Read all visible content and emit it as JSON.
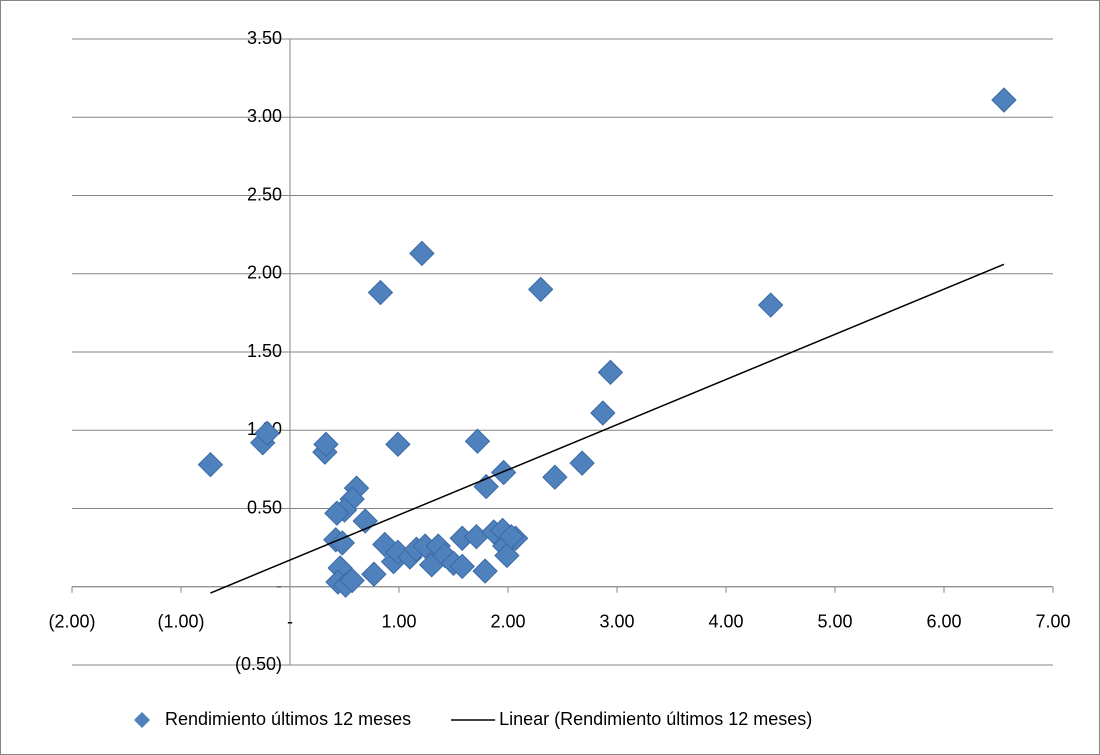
{
  "chart_data": {
    "type": "scatter",
    "xlim": [
      -2,
      7
    ],
    "xticks": [
      {
        "value": -2,
        "label": "(2.00)"
      },
      {
        "value": -1,
        "label": "(1.00)"
      },
      {
        "value": 0,
        "label": "-"
      },
      {
        "value": 1,
        "label": "1.00"
      },
      {
        "value": 2,
        "label": "2.00"
      },
      {
        "value": 3,
        "label": "3.00"
      },
      {
        "value": 4,
        "label": "4.00"
      },
      {
        "value": 5,
        "label": "5.00"
      },
      {
        "value": 6,
        "label": "6.00"
      },
      {
        "value": 7,
        "label": "7.00"
      }
    ],
    "ylim": [
      -0.5,
      3.5
    ],
    "yticks": [
      {
        "value": -0.5,
        "label": "(0.50)"
      },
      {
        "value": 0,
        "label": "-"
      },
      {
        "value": 0.5,
        "label": "0.50"
      },
      {
        "value": 1,
        "label": "1.00"
      },
      {
        "value": 1.5,
        "label": "1.50"
      },
      {
        "value": 2,
        "label": "2.00"
      },
      {
        "value": 2.5,
        "label": "2.50"
      },
      {
        "value": 3,
        "label": "3.00"
      },
      {
        "value": 3.5,
        "label": "3.50"
      }
    ],
    "grid": true,
    "legend": "bottom",
    "series": [
      {
        "name": "Rendimiento últimos 12 meses",
        "type": "scatter",
        "color": "#4f81bd",
        "x": [
          -0.73,
          -0.25,
          -0.21,
          0.32,
          0.33,
          0.83,
          1.21,
          2.3,
          6.55,
          4.41,
          2.94,
          2.87,
          2.68,
          2.43,
          1.96,
          1.8,
          1.72,
          0.99,
          0.61,
          0.57,
          0.5,
          0.43,
          0.69,
          0.42,
          0.48,
          0.46,
          0.44,
          0.51,
          0.57,
          0.77,
          0.87,
          0.95,
          0.99,
          1.1,
          1.16,
          1.24,
          1.3,
          1.36,
          1.42,
          1.5,
          1.58,
          1.58,
          1.71,
          1.79,
          1.87,
          1.95,
          1.97,
          1.99,
          2.07,
          2.03
        ],
        "values": [
          0.78,
          0.92,
          0.98,
          0.86,
          0.91,
          1.88,
          2.13,
          1.9,
          3.11,
          1.8,
          1.37,
          1.11,
          0.79,
          0.7,
          0.73,
          0.64,
          0.93,
          0.91,
          0.63,
          0.56,
          0.49,
          0.47,
          0.42,
          0.3,
          0.28,
          0.12,
          0.03,
          0.01,
          0.04,
          0.08,
          0.27,
          0.16,
          0.22,
          0.19,
          0.24,
          0.26,
          0.14,
          0.26,
          0.2,
          0.15,
          0.13,
          0.31,
          0.32,
          0.1,
          0.35,
          0.36,
          0.26,
          0.2,
          0.31,
          0.32
        ]
      },
      {
        "name": "Linear (Rendimiento últimos 12 meses)",
        "type": "line",
        "color": "#000000",
        "x": [
          -0.73,
          6.55
        ],
        "values": [
          -0.04,
          2.06
        ]
      }
    ]
  }
}
